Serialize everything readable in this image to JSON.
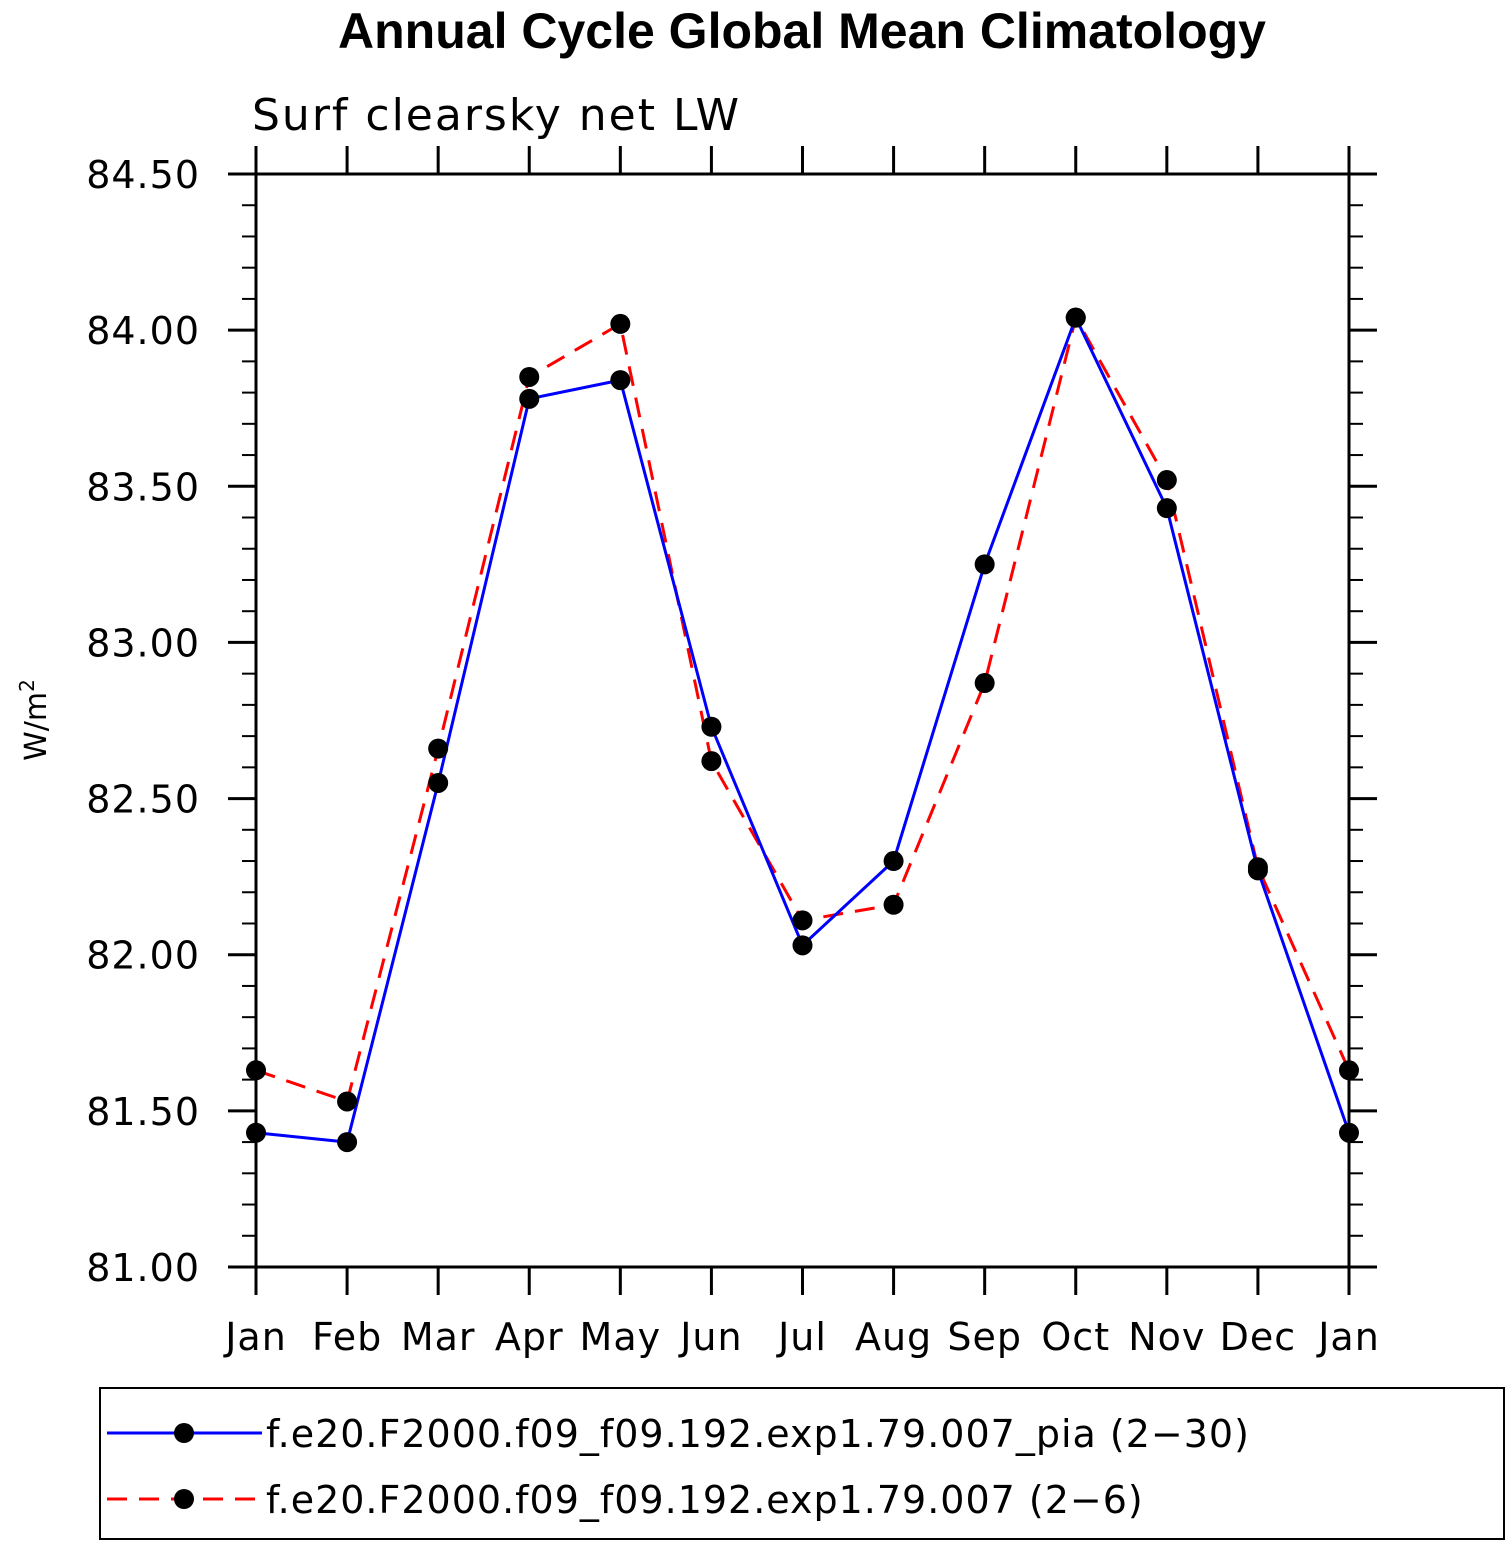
{
  "chart_data": {
    "type": "line",
    "title": "Annual Cycle Global Mean Climatology",
    "subtitle": "Surf clearsky net LW",
    "ylabel": "W/m",
    "ylabel_superscript": "2",
    "ylim": [
      81.0,
      84.5
    ],
    "yticks": [
      "81.00",
      "81.50",
      "82.00",
      "82.50",
      "83.00",
      "83.50",
      "84.00",
      "84.50"
    ],
    "ytick_values": [
      81.0,
      81.5,
      82.0,
      82.5,
      83.0,
      83.5,
      84.0,
      84.5
    ],
    "categories": [
      "Jan",
      "Feb",
      "Mar",
      "Apr",
      "May",
      "Jun",
      "Jul",
      "Aug",
      "Sep",
      "Oct",
      "Nov",
      "Dec",
      "Jan"
    ],
    "series": [
      {
        "name": "f.e20.F2000.f09_f09.192.exp1.79.007_pia (2−30)",
        "color": "#0000ff",
        "dash": "solid",
        "values": [
          81.43,
          81.4,
          82.55,
          83.78,
          83.84,
          82.73,
          82.03,
          82.3,
          83.25,
          84.04,
          83.43,
          82.27,
          81.43
        ]
      },
      {
        "name": "f.e20.F2000.f09_f09.192.exp1.79.007 (2−6)",
        "color": "#ff0000",
        "dash": "dashed",
        "values": [
          81.63,
          81.53,
          82.66,
          83.85,
          84.02,
          82.62,
          82.11,
          82.16,
          82.87,
          84.04,
          83.52,
          82.28,
          81.63
        ]
      }
    ],
    "marker_color": "#000000",
    "legend_position": "bottom"
  }
}
